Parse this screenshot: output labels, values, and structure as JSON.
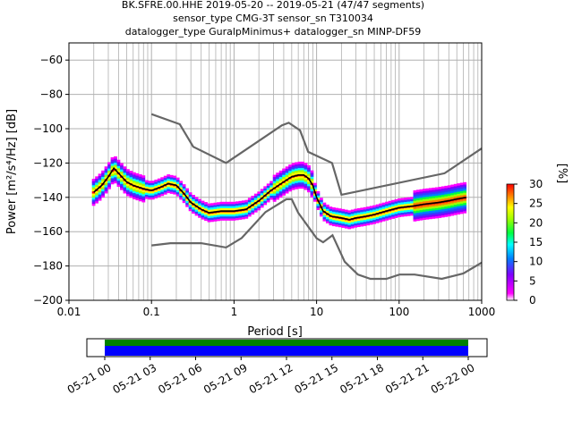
{
  "chart_data": {
    "type": "heatmap",
    "title_lines": [
      "BK.SFRE.00.HHE   2019-05-20 -- 2019-05-21  (47/47 segments)",
      "sensor_type CMG-3T sensor_sn T310034",
      "datalogger_type GuralpMinimus+ datalogger_sn MINP-DF59"
    ],
    "xlabel": "Period [s]",
    "ylabel": "Power [m²/s⁴/Hz] [dB]",
    "x_scale": "log",
    "xlim": [
      0.01,
      1000
    ],
    "ylim": [
      -200,
      -50
    ],
    "x_tick_labels": [
      "0.01",
      "0.1",
      "1",
      "10",
      "100",
      "1000"
    ],
    "x_tick_values": [
      0.01,
      0.1,
      1,
      10,
      100,
      1000
    ],
    "y_tick_values": [
      -60,
      -80,
      -100,
      -120,
      -140,
      -160,
      -180,
      -200
    ],
    "y_tick_labels": [
      "−60",
      "−80",
      "−100",
      "−120",
      "−140",
      "−160",
      "−180",
      "−200"
    ],
    "grid": true,
    "colorbar": {
      "label": "[%]",
      "range": [
        0,
        30
      ],
      "tick_values": [
        0,
        5,
        10,
        15,
        20,
        25,
        30
      ],
      "tick_labels": [
        "0",
        "5",
        "10",
        "15",
        "20",
        "25",
        "30"
      ]
    },
    "nhnm": {
      "periods": [
        0.1,
        0.22,
        0.32,
        0.8,
        3.8,
        4.6,
        6.3,
        7.9,
        15.4,
        20,
        354.8,
        1000
      ],
      "db": [
        -91.5,
        -97.4,
        -110.5,
        -120,
        -98,
        -96.5,
        -101,
        -113.5,
        -120,
        -138.5,
        -126,
        -111.5
      ]
    },
    "nlnm": {
      "periods": [
        0.1,
        0.17,
        0.4,
        0.8,
        1.24,
        2.4,
        4.3,
        5,
        6,
        10,
        12,
        15.6,
        21.9,
        31.6,
        45,
        70,
        101,
        154,
        328,
        600,
        1000
      ],
      "db": [
        -168,
        -166.7,
        -166.7,
        -169.2,
        -163.7,
        -148.6,
        -141.1,
        -141.1,
        -149,
        -163.8,
        -166.2,
        -162.1,
        -177.5,
        -185,
        -187.5,
        -187.5,
        -185,
        -185,
        -187.5,
        -184.4,
        -178
      ]
    },
    "mode_curve": {
      "periods": [
        0.02,
        0.025,
        0.03,
        0.035,
        0.04,
        0.05,
        0.06,
        0.08,
        0.1,
        0.13,
        0.16,
        0.2,
        0.25,
        0.3,
        0.4,
        0.5,
        0.7,
        1,
        1.4,
        2,
        2.8,
        4,
        5,
        6,
        7,
        8,
        9,
        10,
        12,
        15,
        20,
        25,
        30,
        40,
        50,
        70,
        100,
        150,
        200,
        300,
        400,
        500,
        650
      ],
      "db": [
        -137,
        -133,
        -128,
        -123,
        -126,
        -131,
        -133,
        -135,
        -136,
        -134,
        -132,
        -133,
        -138,
        -143,
        -147,
        -149,
        -148,
        -148,
        -147,
        -142,
        -136,
        -131,
        -128,
        -127,
        -127,
        -129,
        -133,
        -140,
        -148,
        -151,
        -152,
        -153,
        -152,
        -151,
        -150,
        -148,
        -146,
        -145,
        -144,
        -143,
        -142,
        -141,
        -140
      ]
    },
    "time_axis": {
      "tick_labels": [
        "05-21 00",
        "05-21 03",
        "05-21 06",
        "05-21 09",
        "05-21 12",
        "05-21 15",
        "05-21 18",
        "05-21 21",
        "05-22 00"
      ],
      "data_coverage_color": "#0000ff",
      "gap_coverage_color": "#008000"
    }
  }
}
